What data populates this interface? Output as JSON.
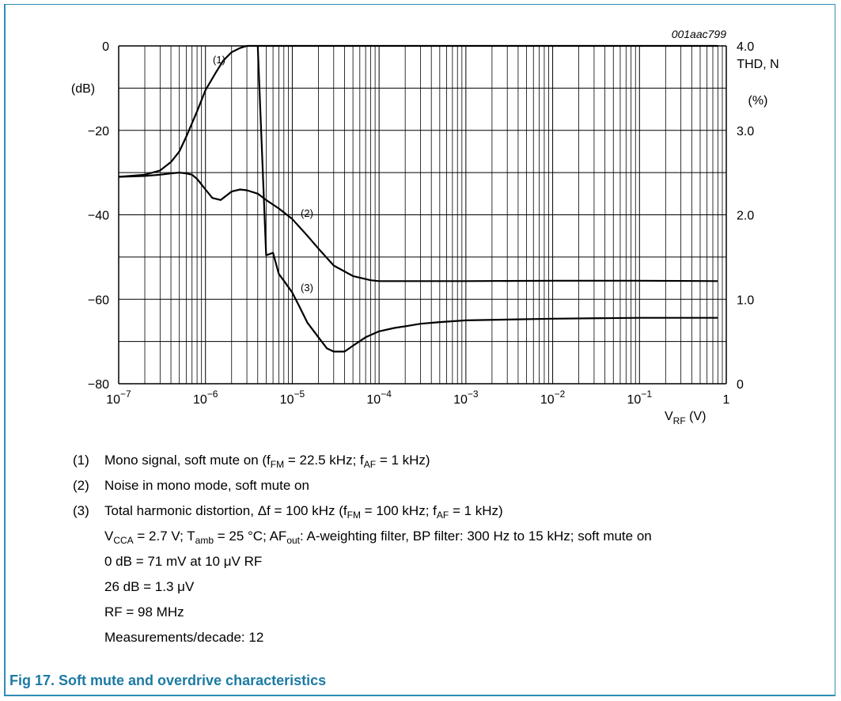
{
  "figure": {
    "id_label": "001aac799",
    "caption": "Fig 17. Soft mute and overdrive characteristics"
  },
  "chart_data": {
    "type": "line",
    "x_scale": "log",
    "xlim": [
      1e-07,
      1
    ],
    "x_tick_labels": [
      {
        "base": "10",
        "exp": "−7"
      },
      {
        "base": "10",
        "exp": "−6"
      },
      {
        "base": "10",
        "exp": "−5"
      },
      {
        "base": "10",
        "exp": "−4"
      },
      {
        "base": "10",
        "exp": "−3"
      },
      {
        "base": "10",
        "exp": "−2"
      },
      {
        "base": "10",
        "exp": "−1"
      },
      {
        "base": "1",
        "exp": ""
      }
    ],
    "xlabel": {
      "main": "V",
      "sub": "RF",
      "unit": " (V)"
    },
    "y_left": {
      "label": "(dB)",
      "lim": [
        -80,
        0
      ],
      "ticks": [
        "0",
        "−20",
        "−40",
        "−60",
        "−80"
      ]
    },
    "y_right": {
      "label_line1": "THD, N",
      "label_line2": "(%)",
      "lim": [
        0,
        4.0
      ],
      "ticks": [
        "4.0",
        "3.0",
        "2.0",
        "1.0",
        "0"
      ]
    },
    "grid": true,
    "series": [
      {
        "name": "(1)",
        "axis": "left",
        "x": [
          1e-07,
          2e-07,
          3e-07,
          4e-07,
          5e-07,
          6e-07,
          8e-07,
          1e-06,
          1.3e-06,
          1.6e-06,
          2e-06,
          2.5e-06,
          3e-06,
          3.5e-06,
          4e-06,
          5e-06,
          1e-05,
          0.0001,
          0.001,
          0.01,
          0.1,
          0.8
        ],
        "y": [
          -31,
          -30.5,
          -29.5,
          -27.5,
          -25,
          -21.5,
          -15.5,
          -10.5,
          -6.5,
          -3.5,
          -1.5,
          -0.5,
          0,
          0,
          0,
          0,
          0,
          0,
          0,
          0,
          0,
          0
        ]
      },
      {
        "name": "(2)",
        "axis": "left",
        "x": [
          1e-07,
          2e-07,
          3e-07,
          4e-07,
          5e-07,
          6e-07,
          7e-07,
          8e-07,
          1e-06,
          1.2e-06,
          1.5e-06,
          2e-06,
          2.5e-06,
          3e-06,
          4e-06,
          5e-06,
          7e-06,
          1e-05,
          1.5e-05,
          2e-05,
          3e-05,
          5e-05,
          8e-05,
          0.0001,
          0.001,
          0.01,
          0.1,
          0.8
        ],
        "y": [
          -31,
          -30.8,
          -30.5,
          -30.2,
          -30,
          -30.2,
          -30.5,
          -31.5,
          -34,
          -36,
          -36.5,
          -34.5,
          -34,
          -34.2,
          -35,
          -36.5,
          -38.5,
          -41,
          -45,
          -48,
          -52,
          -54.5,
          -55.5,
          -55.7,
          -55.7,
          -55.6,
          -55.6,
          -55.7
        ]
      },
      {
        "name": "(3)",
        "axis": "right",
        "x": [
          4e-06,
          5e-06,
          6e-06,
          7e-06,
          8e-06,
          1e-05,
          1.2e-05,
          1.5e-05,
          2e-05,
          2.5e-05,
          3e-05,
          4e-05,
          5e-05,
          7e-05,
          0.0001,
          0.00015,
          0.0002,
          0.0003,
          0.0005,
          0.001,
          0.01,
          0.1,
          0.8
        ],
        "y": [
          4.0,
          1.52,
          1.55,
          1.3,
          1.22,
          1.08,
          0.92,
          0.72,
          0.55,
          0.42,
          0.38,
          0.38,
          0.45,
          0.55,
          0.62,
          0.66,
          0.68,
          0.71,
          0.73,
          0.75,
          0.77,
          0.78,
          0.78
        ]
      }
    ]
  },
  "notes": [
    {
      "num": "(1)",
      "parts": [
        {
          "t": "Mono signal, soft mute on (f"
        },
        {
          "s": "FM"
        },
        {
          "t": " = 22.5 kHz; f"
        },
        {
          "s": "AF"
        },
        {
          "t": " = 1 kHz)"
        }
      ]
    },
    {
      "num": "(2)",
      "parts": [
        {
          "t": "Noise in mono mode, soft mute on"
        }
      ]
    },
    {
      "num": "(3)",
      "parts": [
        {
          "t": "Total harmonic distortion, Δf = 100 kHz (f"
        },
        {
          "s": "FM"
        },
        {
          "t": " = 100 kHz; f"
        },
        {
          "s": "AF"
        },
        {
          "t": " = 1 kHz)"
        }
      ]
    }
  ],
  "conditions": [
    {
      "parts": [
        {
          "t": "V"
        },
        {
          "s": "CCA"
        },
        {
          "t": " = 2.7 V; T"
        },
        {
          "s": "amb"
        },
        {
          "t": " = 25 °C; AF"
        },
        {
          "s": "out"
        },
        {
          "t": ": A-weighting filter, BP filter: 300 Hz to 15 kHz; soft mute on"
        }
      ]
    },
    {
      "parts": [
        {
          "t": "0 dB = 71 mV at 10 μV RF"
        }
      ]
    },
    {
      "parts": [
        {
          "t": "26 dB = 1.3 μV"
        }
      ]
    },
    {
      "parts": [
        {
          "t": "RF = 98 MHz"
        }
      ]
    },
    {
      "parts": [
        {
          "t": "Measurements/decade: 12"
        }
      ]
    }
  ],
  "colors": {
    "frame": "#2e8db4",
    "caption": "#1d7aa3",
    "ink": "#000000"
  }
}
